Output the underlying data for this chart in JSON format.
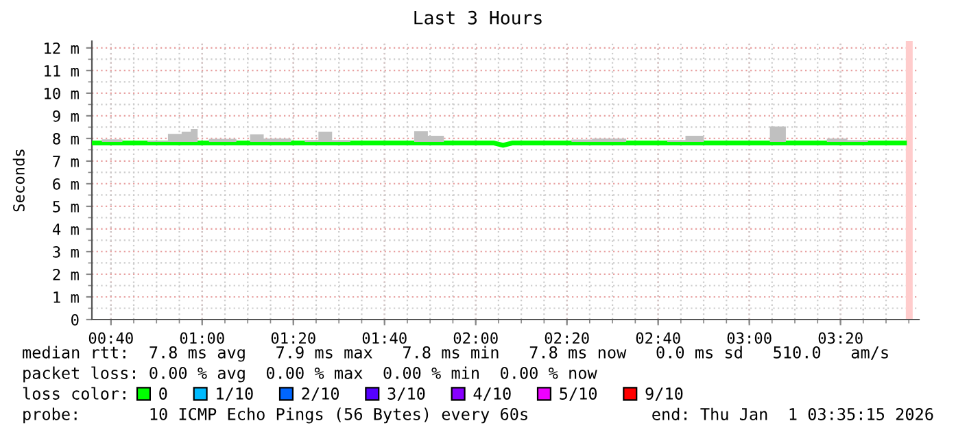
{
  "chart_data": {
    "type": "line",
    "title": "Last 3 Hours",
    "ylabel": "Seconds",
    "x": [
      0.6,
      0.667,
      0.75,
      0.85,
      0.9,
      0.95,
      0.967,
      1.0,
      1.05,
      1.1,
      1.15,
      1.2,
      1.25,
      1.3,
      1.35,
      1.4,
      1.45,
      1.5,
      1.583,
      1.667,
      1.75,
      1.8,
      1.85,
      1.917,
      2.0,
      2.067,
      2.1,
      2.133,
      2.2,
      2.3,
      2.4,
      2.45,
      2.517,
      2.583,
      2.667,
      2.733,
      2.8,
      2.867,
      2.967,
      3.05,
      3.1,
      3.167,
      3.25,
      3.317,
      3.4,
      3.467,
      3.567
    ],
    "series": [
      {
        "name": "0",
        "color": "#00ff00",
        "values": [
          7.8,
          7.8,
          7.8,
          7.8,
          7.8,
          7.8,
          7.8,
          7.8,
          7.8,
          7.8,
          7.8,
          7.8,
          7.8,
          7.8,
          7.8,
          7.8,
          7.8,
          7.8,
          7.8,
          7.8,
          7.8,
          7.8,
          7.8,
          7.8,
          7.8,
          7.8,
          7.7,
          7.8,
          7.8,
          7.8,
          7.8,
          7.8,
          7.8,
          7.8,
          7.8,
          7.8,
          7.8,
          7.8,
          7.8,
          7.8,
          7.8,
          7.8,
          7.8,
          7.8,
          7.8,
          7.8,
          7.8
        ],
        "lower": [
          7.85,
          7.85,
          7.85,
          7.85,
          7.85,
          7.85,
          7.85,
          7.85,
          7.85,
          7.85,
          7.85,
          7.85,
          7.85,
          7.85,
          7.85,
          7.85,
          7.85,
          7.85,
          7.85,
          7.85,
          7.85,
          7.85,
          7.85,
          7.85,
          7.85,
          7.85,
          7.75,
          7.85,
          7.85,
          7.85,
          7.85,
          7.85,
          7.85,
          7.85,
          7.85,
          7.85,
          7.85,
          7.85,
          7.85,
          7.85,
          7.85,
          7.85,
          7.85,
          7.85,
          7.85,
          7.85,
          7.85
        ],
        "upper": [
          7.85,
          7.96,
          7.85,
          7.9,
          8.2,
          8.3,
          8.42,
          7.85,
          7.98,
          7.98,
          7.85,
          8.18,
          8.0,
          8.0,
          7.85,
          7.93,
          8.3,
          7.93,
          7.85,
          7.85,
          7.85,
          8.32,
          8.12,
          7.85,
          7.85,
          7.85,
          7.75,
          7.85,
          7.85,
          7.85,
          7.95,
          8.0,
          8.0,
          7.85,
          7.85,
          7.93,
          8.12,
          7.85,
          7.85,
          7.85,
          8.53,
          7.85,
          7.85,
          8.0,
          7.93,
          7.85,
          7.85
        ]
      },
      {
        "name": "1/10",
        "color": "#00bbff",
        "values": [
          null,
          null,
          null,
          null,
          null,
          null,
          null,
          null,
          null,
          null,
          null,
          null,
          null,
          null,
          null,
          null,
          null,
          null,
          null,
          null,
          null,
          null,
          null,
          null,
          null,
          null,
          null,
          null,
          null,
          null,
          null,
          null,
          null,
          null,
          null,
          null,
          null,
          null,
          null,
          null,
          null,
          null,
          null,
          null,
          null,
          null,
          null
        ]
      },
      {
        "name": "2/10",
        "color": "#0066ff",
        "values": [
          null,
          null,
          null,
          null,
          null,
          null,
          null,
          null,
          null,
          null,
          null,
          null,
          null,
          null,
          null,
          null,
          null,
          null,
          null,
          null,
          null,
          null,
          null,
          null,
          null,
          null,
          null,
          null,
          null,
          null,
          null,
          null,
          null,
          null,
          null,
          null,
          null,
          null,
          null,
          null,
          null,
          null,
          null,
          null,
          null,
          null,
          null
        ]
      },
      {
        "name": "3/10",
        "color": "#5500ff",
        "values": [
          null,
          null,
          null,
          null,
          null,
          null,
          null,
          null,
          null,
          null,
          null,
          null,
          null,
          null,
          null,
          null,
          null,
          null,
          null,
          null,
          null,
          null,
          null,
          null,
          null,
          null,
          null,
          null,
          null,
          null,
          null,
          null,
          null,
          null,
          null,
          null,
          null,
          null,
          null,
          null,
          null,
          null,
          null,
          null,
          null,
          null,
          null
        ]
      },
      {
        "name": "4/10",
        "color": "#8800ff",
        "values": [
          null,
          null,
          null,
          null,
          null,
          null,
          null,
          null,
          null,
          null,
          null,
          null,
          null,
          null,
          null,
          null,
          null,
          null,
          null,
          null,
          null,
          null,
          null,
          null,
          null,
          null,
          null,
          null,
          null,
          null,
          null,
          null,
          null,
          null,
          null,
          null,
          null,
          null,
          null,
          null,
          null,
          null,
          null,
          null,
          null,
          null,
          null
        ]
      },
      {
        "name": "5/10",
        "color": "#ee00ff",
        "values": [
          null,
          null,
          null,
          null,
          null,
          null,
          null,
          null,
          null,
          null,
          null,
          null,
          null,
          null,
          null,
          null,
          null,
          null,
          null,
          null,
          null,
          null,
          null,
          null,
          null,
          null,
          null,
          null,
          null,
          null,
          null,
          null,
          null,
          null,
          null,
          null,
          null,
          null,
          null,
          null,
          null,
          null,
          null,
          null,
          null,
          null,
          null
        ]
      },
      {
        "name": "9/10",
        "color": "#ff0000",
        "values": [
          null,
          null,
          null,
          null,
          null,
          null,
          null,
          null,
          null,
          null,
          null,
          null,
          null,
          null,
          null,
          null,
          null,
          null,
          null,
          null,
          null,
          null,
          null,
          null,
          null,
          null,
          null,
          null,
          null,
          null,
          null,
          null,
          null,
          null,
          null,
          null,
          null,
          null,
          null,
          null,
          null,
          null,
          null,
          null,
          null,
          null,
          null
        ]
      }
    ],
    "legend": "bottom",
    "legend_title": "loss color:",
    "xlim": [
      0.597,
      3.62
    ],
    "xticks": [
      {
        "value": 0.6667,
        "label": "00:40"
      },
      {
        "value": 1,
        "label": "01:00"
      },
      {
        "value": 1.3333,
        "label": "01:20"
      },
      {
        "value": 1.6667,
        "label": "01:40"
      },
      {
        "value": 2,
        "label": "02:00"
      },
      {
        "value": 2.3333,
        "label": "02:20"
      },
      {
        "value": 2.6667,
        "label": "02:40"
      },
      {
        "value": 3,
        "label": "03:00"
      },
      {
        "value": 3.3333,
        "label": "03:20"
      }
    ],
    "ylim": [
      0,
      12.3
    ],
    "yticks": [
      0,
      {
        "value": 1,
        "label": "1 m"
      },
      {
        "value": 2,
        "label": "2 m"
      },
      {
        "value": 3,
        "label": "3 m"
      },
      {
        "value": 4,
        "label": "4 m"
      },
      {
        "value": 5,
        "label": "5 m"
      },
      {
        "value": 6,
        "label": "6 m"
      },
      {
        "value": 7,
        "label": "7 m"
      },
      {
        "value": 8,
        "label": "8 m"
      },
      {
        "value": 9,
        "label": "9 m"
      },
      {
        "value": 10,
        "label": "10 m"
      },
      {
        "value": 11,
        "label": "11 m"
      },
      {
        "value": 12,
        "label": "12 m"
      }
    ],
    "grid": true,
    "bands": [
      {
        "axis": "x",
        "from": 3.572,
        "to": 3.597,
        "color": "#ffcccc"
      }
    ],
    "annotations": [
      "median rtt:  7.8 ms avg   7.9 ms max   7.8 ms min   7.8 ms now   0.0 ms sd   510.0   am/s",
      "packet loss: 0.00 % avg  0.00 % max  0.00 % min  0.00 % now",
      "probe:       10 ICMP Echo Pings (56 Bytes) every 60s",
      "end: Thu Jan  1 03:35:15 2026"
    ]
  }
}
